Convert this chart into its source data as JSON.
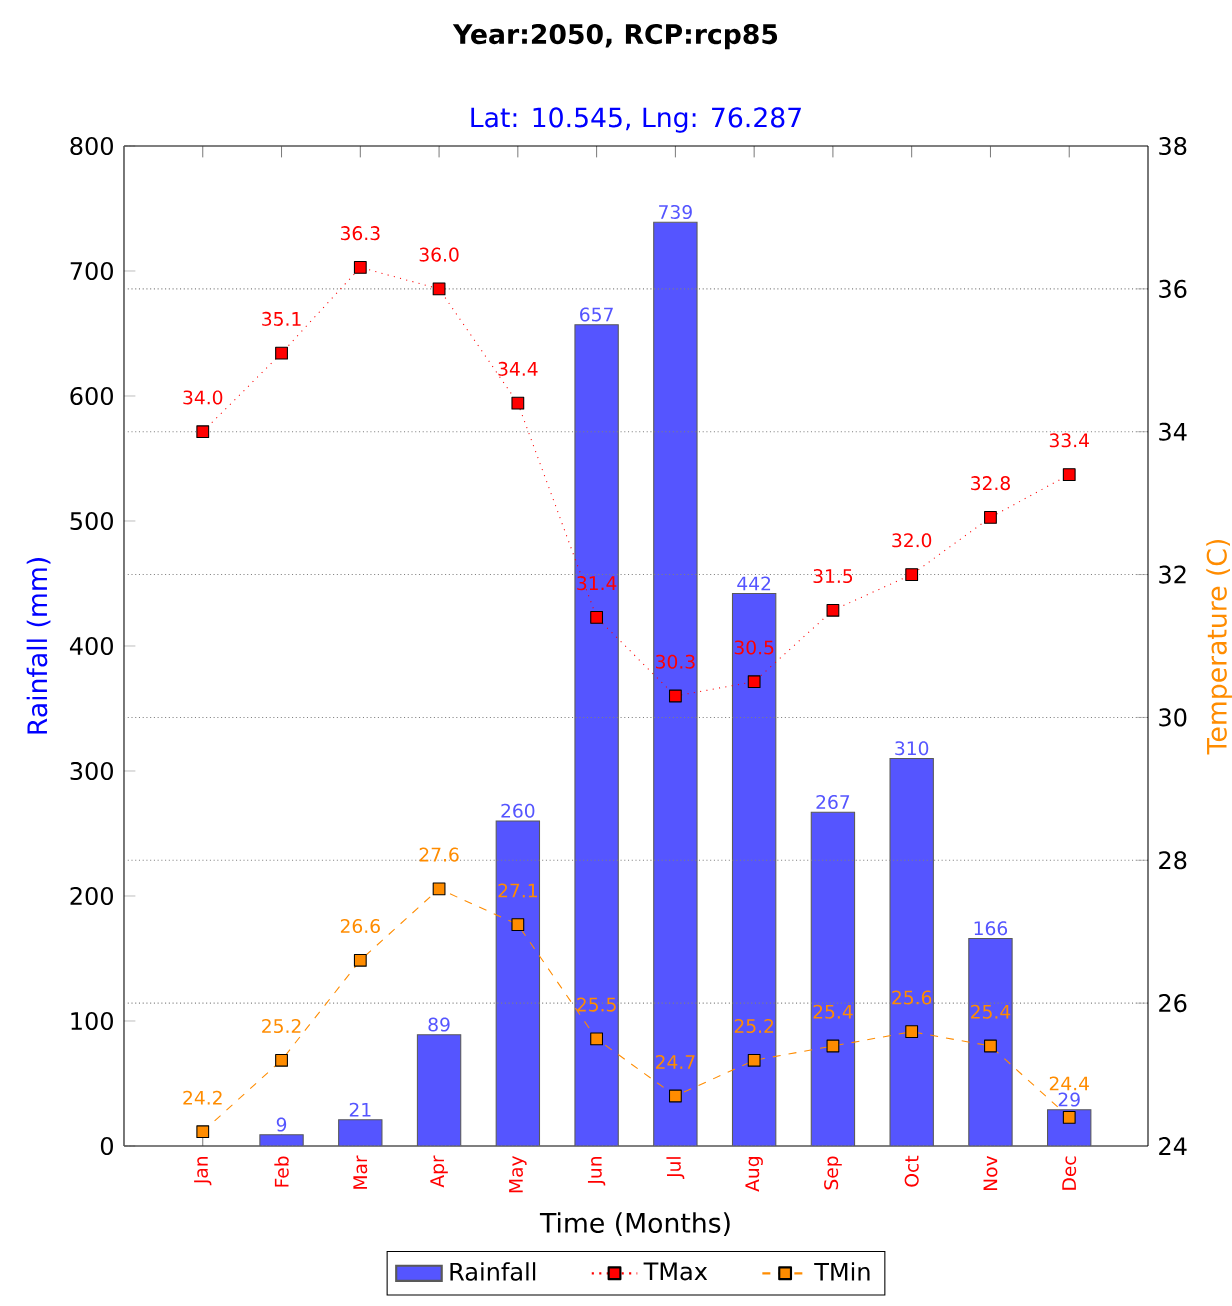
{
  "chart_data": {
    "type": "bar",
    "title": "Year:2050, RCP:rcp85",
    "subtitle": "Lat: 10.545, Lng: 76.287",
    "xlabel": "Time (Months)",
    "ylabel": "Rainfall (mm)",
    "y2label": "Temperature (C)",
    "categories": [
      "Jan",
      "Feb",
      "Mar",
      "Apr",
      "May",
      "Jun",
      "Jul",
      "Aug",
      "Sep",
      "Oct",
      "Nov",
      "Dec"
    ],
    "series": [
      {
        "name": "Rainfall",
        "color": "#5555ff",
        "values": [
          null,
          9,
          21,
          89,
          260,
          657,
          739,
          442,
          267,
          310,
          166,
          29
        ],
        "value_labels": [
          null,
          "9",
          "21",
          "89",
          "260",
          "657",
          "739",
          "442",
          "267",
          "310",
          "166",
          "29"
        ]
      },
      {
        "name": "TMax",
        "type": "line",
        "axis": "y2",
        "color": "#ff0000",
        "marker": "square",
        "line_style": "dotted",
        "values": [
          34.0,
          35.1,
          36.3,
          36.0,
          34.4,
          31.4,
          30.3,
          30.5,
          31.5,
          32.0,
          32.8,
          33.4
        ],
        "value_labels": [
          "34.0",
          "35.1",
          "36.3",
          "36.0",
          "34.4",
          "31.4",
          "30.3",
          "30.5",
          "31.5",
          "32.0",
          "32.8",
          "33.4"
        ]
      },
      {
        "name": "TMin",
        "type": "line",
        "axis": "y2",
        "color": "#ff8c00",
        "marker": "square",
        "line_style": "dashed",
        "values": [
          24.2,
          25.2,
          26.6,
          27.6,
          27.1,
          25.5,
          24.7,
          25.2,
          25.4,
          25.6,
          25.4,
          24.4
        ],
        "value_labels": [
          "24.2",
          "25.2",
          "26.6",
          "27.6",
          "27.1",
          "25.5",
          "24.7",
          "25.2",
          "25.4",
          "25.6",
          "25.4",
          "24.4"
        ]
      }
    ],
    "ylim": [
      0,
      800
    ],
    "yticks": [
      0,
      100,
      200,
      300,
      400,
      500,
      600,
      700,
      800
    ],
    "y2lim": [
      24,
      38
    ],
    "y2ticks": [
      24,
      26,
      28,
      30,
      32,
      34,
      36,
      38
    ],
    "grid": "y2",
    "legend": "bottom"
  }
}
